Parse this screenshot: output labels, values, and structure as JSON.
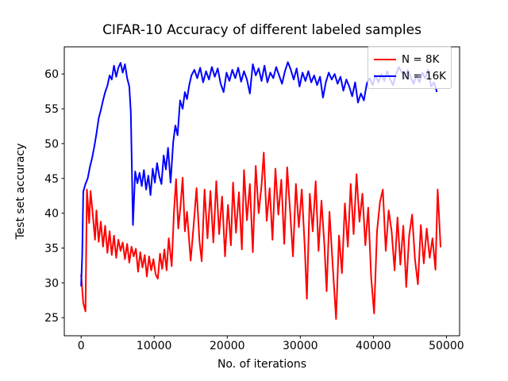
{
  "chart_data": {
    "type": "line",
    "title": "CIFAR-10 Accuracy of different labeled samples",
    "xlabel": "No. of iterations",
    "ylabel": "Test set accuracy",
    "xlim": [
      -2300,
      51800
    ],
    "ylim": [
      22.4,
      63.9
    ],
    "xticks": [
      0,
      10000,
      20000,
      30000,
      40000,
      50000
    ],
    "yticks": [
      25,
      30,
      35,
      40,
      45,
      50,
      55,
      60
    ],
    "grid": false,
    "legend_position": "upper right",
    "axis_color": "#000000",
    "text_color": "#000000",
    "series": [
      {
        "name": "N = 8K",
        "color": "#ff0000",
        "points": [
          [
            0,
            31.2
          ],
          [
            300,
            27.1
          ],
          [
            600,
            25.9
          ],
          [
            800,
            43.4
          ],
          [
            1100,
            38.6
          ],
          [
            1300,
            43.2
          ],
          [
            1600,
            39.8
          ],
          [
            1900,
            36.2
          ],
          [
            2100,
            40.4
          ],
          [
            2400,
            35.9
          ],
          [
            2700,
            38.8
          ],
          [
            3000,
            35.2
          ],
          [
            3300,
            38.2
          ],
          [
            3600,
            34.3
          ],
          [
            3900,
            37.4
          ],
          [
            4200,
            34.0
          ],
          [
            4500,
            36.8
          ],
          [
            4800,
            33.6
          ],
          [
            5100,
            36.2
          ],
          [
            5400,
            34.6
          ],
          [
            5700,
            35.8
          ],
          [
            6000,
            33.4
          ],
          [
            6300,
            35.6
          ],
          [
            6600,
            32.9
          ],
          [
            6900,
            35.2
          ],
          [
            7200,
            33.8
          ],
          [
            7500,
            34.9
          ],
          [
            7800,
            31.6
          ],
          [
            8100,
            34.4
          ],
          [
            8400,
            32.2
          ],
          [
            8700,
            34.0
          ],
          [
            9000,
            30.9
          ],
          [
            9300,
            33.8
          ],
          [
            9600,
            31.8
          ],
          [
            9900,
            33.4
          ],
          [
            10200,
            31.2
          ],
          [
            10500,
            30.6
          ],
          [
            10800,
            34.2
          ],
          [
            11100,
            32.0
          ],
          [
            11400,
            34.8
          ],
          [
            11700,
            31.8
          ],
          [
            12000,
            36.4
          ],
          [
            12400,
            32.4
          ],
          [
            12700,
            40.0
          ],
          [
            13000,
            44.9
          ],
          [
            13300,
            37.8
          ],
          [
            13600,
            41.0
          ],
          [
            13900,
            45.1
          ],
          [
            14200,
            37.4
          ],
          [
            14500,
            40.2
          ],
          [
            15000,
            33.2
          ],
          [
            15400,
            38.2
          ],
          [
            15800,
            43.6
          ],
          [
            16200,
            36.0
          ],
          [
            16500,
            33.1
          ],
          [
            16900,
            43.4
          ],
          [
            17300,
            36.4
          ],
          [
            17700,
            43.2
          ],
          [
            18100,
            35.8
          ],
          [
            18500,
            44.6
          ],
          [
            18900,
            37.0
          ],
          [
            19300,
            42.4
          ],
          [
            19700,
            33.8
          ],
          [
            20100,
            41.2
          ],
          [
            20500,
            35.4
          ],
          [
            20800,
            44.4
          ],
          [
            21200,
            37.2
          ],
          [
            21600,
            43.0
          ],
          [
            22000,
            34.8
          ],
          [
            22300,
            46.2
          ],
          [
            22700,
            39.0
          ],
          [
            23100,
            44.2
          ],
          [
            23500,
            34.4
          ],
          [
            23900,
            46.8
          ],
          [
            24300,
            40.0
          ],
          [
            24700,
            44.0
          ],
          [
            25000,
            48.7
          ],
          [
            25400,
            38.9
          ],
          [
            25800,
            43.6
          ],
          [
            26200,
            36.2
          ],
          [
            26600,
            46.4
          ],
          [
            27000,
            39.8
          ],
          [
            27400,
            44.8
          ],
          [
            27800,
            35.6
          ],
          [
            28200,
            46.6
          ],
          [
            28600,
            40.4
          ],
          [
            29000,
            33.8
          ],
          [
            29400,
            44.2
          ],
          [
            29800,
            38.0
          ],
          [
            30200,
            43.4
          ],
          [
            30600,
            35.2
          ],
          [
            30900,
            27.7
          ],
          [
            31300,
            42.8
          ],
          [
            31700,
            37.4
          ],
          [
            32100,
            44.6
          ],
          [
            32500,
            34.6
          ],
          [
            32900,
            41.8
          ],
          [
            33300,
            35.4
          ],
          [
            33600,
            28.8
          ],
          [
            34000,
            40.2
          ],
          [
            34400,
            33.2
          ],
          [
            34900,
            24.8
          ],
          [
            35300,
            36.8
          ],
          [
            35700,
            31.4
          ],
          [
            36100,
            41.4
          ],
          [
            36500,
            35.2
          ],
          [
            36900,
            44.2
          ],
          [
            37300,
            37.0
          ],
          [
            37700,
            45.6
          ],
          [
            38100,
            38.8
          ],
          [
            38500,
            42.8
          ],
          [
            38900,
            35.4
          ],
          [
            39300,
            40.8
          ],
          [
            39700,
            30.8
          ],
          [
            40100,
            25.6
          ],
          [
            40500,
            37.4
          ],
          [
            40900,
            41.6
          ],
          [
            41300,
            43.4
          ],
          [
            41700,
            34.6
          ],
          [
            42100,
            40.4
          ],
          [
            42500,
            37.4
          ],
          [
            42900,
            31.8
          ],
          [
            43300,
            39.4
          ],
          [
            43700,
            32.6
          ],
          [
            44100,
            38.2
          ],
          [
            44500,
            29.4
          ],
          [
            44900,
            36.8
          ],
          [
            45300,
            39.8
          ],
          [
            45700,
            33.4
          ],
          [
            46100,
            29.8
          ],
          [
            46500,
            38.3
          ],
          [
            46900,
            32.8
          ],
          [
            47300,
            37.8
          ],
          [
            47700,
            33.6
          ],
          [
            48100,
            36.4
          ],
          [
            48500,
            31.9
          ],
          [
            48800,
            43.4
          ],
          [
            49200,
            35.1
          ]
        ]
      },
      {
        "name": "N = 16K",
        "color": "#0000ff",
        "points": [
          [
            0,
            29.5
          ],
          [
            150,
            34.0
          ],
          [
            300,
            43.1
          ],
          [
            600,
            44.2
          ],
          [
            900,
            45.0
          ],
          [
            1200,
            46.6
          ],
          [
            1500,
            47.9
          ],
          [
            1800,
            49.5
          ],
          [
            2100,
            51.4
          ],
          [
            2400,
            53.6
          ],
          [
            2700,
            54.8
          ],
          [
            3000,
            56.2
          ],
          [
            3300,
            57.4
          ],
          [
            3600,
            58.3
          ],
          [
            3900,
            59.8
          ],
          [
            4200,
            59.2
          ],
          [
            4500,
            61.2
          ],
          [
            4800,
            59.6
          ],
          [
            5100,
            60.9
          ],
          [
            5400,
            61.6
          ],
          [
            5700,
            60.2
          ],
          [
            6000,
            61.4
          ],
          [
            6300,
            59.4
          ],
          [
            6600,
            58.2
          ],
          [
            6800,
            54.5
          ],
          [
            7100,
            38.3
          ],
          [
            7400,
            46.0
          ],
          [
            7700,
            44.3
          ],
          [
            8000,
            45.8
          ],
          [
            8300,
            43.9
          ],
          [
            8600,
            46.2
          ],
          [
            8900,
            43.4
          ],
          [
            9200,
            45.4
          ],
          [
            9500,
            42.6
          ],
          [
            9800,
            46.4
          ],
          [
            10100,
            44.4
          ],
          [
            10400,
            47.2
          ],
          [
            10700,
            45.3
          ],
          [
            11000,
            44.2
          ],
          [
            11300,
            48.3
          ],
          [
            11600,
            46.3
          ],
          [
            11900,
            49.4
          ],
          [
            12250,
            44.4
          ],
          [
            12600,
            50.2
          ],
          [
            12900,
            52.6
          ],
          [
            13200,
            51.2
          ],
          [
            13550,
            56.2
          ],
          [
            13900,
            55.0
          ],
          [
            14200,
            57.4
          ],
          [
            14500,
            56.4
          ],
          [
            14800,
            58.4
          ],
          [
            15100,
            59.8
          ],
          [
            15500,
            60.6
          ],
          [
            15900,
            59.4
          ],
          [
            16300,
            60.9
          ],
          [
            16700,
            58.8
          ],
          [
            17100,
            60.4
          ],
          [
            17500,
            59.2
          ],
          [
            17900,
            61.0
          ],
          [
            18300,
            59.6
          ],
          [
            18700,
            60.8
          ],
          [
            19100,
            58.6
          ],
          [
            19500,
            57.4
          ],
          [
            19900,
            60.2
          ],
          [
            20300,
            59.0
          ],
          [
            20700,
            60.6
          ],
          [
            21100,
            59.4
          ],
          [
            21500,
            60.9
          ],
          [
            21900,
            58.9
          ],
          [
            22300,
            60.4
          ],
          [
            22700,
            59.2
          ],
          [
            23100,
            57.2
          ],
          [
            23500,
            61.4
          ],
          [
            23900,
            59.8
          ],
          [
            24300,
            60.8
          ],
          [
            24700,
            59.0
          ],
          [
            25100,
            61.2
          ],
          [
            25500,
            58.8
          ],
          [
            25900,
            60.2
          ],
          [
            26300,
            59.4
          ],
          [
            26700,
            61.0
          ],
          [
            27100,
            59.8
          ],
          [
            27500,
            58.6
          ],
          [
            27900,
            60.4
          ],
          [
            28300,
            61.7
          ],
          [
            28700,
            60.6
          ],
          [
            29100,
            59.2
          ],
          [
            29500,
            60.8
          ],
          [
            29900,
            58.2
          ],
          [
            30300,
            60.2
          ],
          [
            30700,
            59.0
          ],
          [
            31100,
            60.4
          ],
          [
            31500,
            58.8
          ],
          [
            31900,
            59.8
          ],
          [
            32300,
            58.4
          ],
          [
            32700,
            59.6
          ],
          [
            33100,
            56.6
          ],
          [
            33500,
            58.8
          ],
          [
            33900,
            60.2
          ],
          [
            34300,
            59.2
          ],
          [
            34700,
            60.0
          ],
          [
            35100,
            58.6
          ],
          [
            35500,
            59.6
          ],
          [
            35900,
            57.6
          ],
          [
            36300,
            59.2
          ],
          [
            36700,
            58.2
          ],
          [
            37100,
            56.8
          ],
          [
            37500,
            58.8
          ],
          [
            37900,
            55.9
          ],
          [
            38300,
            57.2
          ],
          [
            38700,
            56.2
          ],
          [
            39100,
            58.6
          ],
          [
            39500,
            59.4
          ],
          [
            39900,
            58.4
          ],
          [
            40300,
            59.8
          ],
          [
            40700,
            58.8
          ],
          [
            41100,
            60.0
          ],
          [
            41500,
            59.0
          ],
          [
            41900,
            60.4
          ],
          [
            42300,
            59.2
          ],
          [
            42700,
            58.4
          ],
          [
            43100,
            60.0
          ],
          [
            43500,
            61.0
          ],
          [
            43900,
            60.2
          ],
          [
            44300,
            59.4
          ],
          [
            44700,
            60.6
          ],
          [
            45100,
            59.6
          ],
          [
            45500,
            58.6
          ],
          [
            45900,
            59.8
          ],
          [
            46300,
            58.8
          ],
          [
            46700,
            60.2
          ],
          [
            47100,
            59.4
          ],
          [
            47500,
            60.6
          ],
          [
            47900,
            58.2
          ],
          [
            48300,
            58.8
          ],
          [
            48700,
            57.4
          ]
        ]
      }
    ]
  }
}
